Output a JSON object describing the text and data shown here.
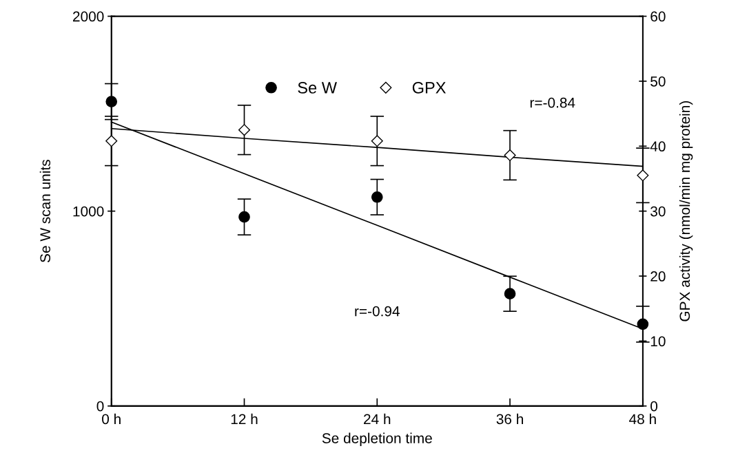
{
  "chart_data": {
    "type": "scatter",
    "xlabel": "Se depletion time",
    "ylabel": "Se W scan units",
    "y2label": "GPX activity (nmol/min mg protein)",
    "x": [
      0,
      12,
      24,
      36,
      48
    ],
    "xlim": [
      0,
      48
    ],
    "xticks": [
      {
        "value": 0,
        "label": "0 h"
      },
      {
        "value": 12,
        "label": "12 h"
      },
      {
        "value": 24,
        "label": "24 h"
      },
      {
        "value": 36,
        "label": "36 h"
      },
      {
        "value": 48,
        "label": "48 h"
      }
    ],
    "ylim": [
      0,
      2000
    ],
    "yticks": [
      0,
      1000,
      2000
    ],
    "y2lim": [
      0,
      60
    ],
    "y2ticks": [
      0,
      10,
      20,
      30,
      40,
      50,
      60
    ],
    "series": [
      {
        "name": "Se W",
        "marker": "circle",
        "color": "#000000",
        "values": [
          1562,
          970,
          1072,
          576,
          420
        ],
        "errors": [
          92,
          92,
          91,
          90,
          92
        ]
      },
      {
        "name": "GPX",
        "marker": "diamond",
        "color": "#000000",
        "axis": "y2",
        "values": [
          40.8,
          42.5,
          40.8,
          38.6,
          35.5
        ],
        "errors": [
          3.8,
          3.8,
          3.8,
          3.8,
          4.2
        ]
      },
      {
        "type": "line",
        "marker": "none",
        "color": "#000000",
        "values": [
          1457,
          1192,
          927,
          661,
          396
        ]
      },
      {
        "type": "line",
        "marker": "none",
        "color": "#000000",
        "axis": "y2",
        "values": [
          42.7,
          41.2,
          39.8,
          38.3,
          36.9
        ]
      }
    ],
    "annotations": [
      "r=-0.84",
      "r=-0.94"
    ],
    "legend": "top",
    "grid": false
  }
}
